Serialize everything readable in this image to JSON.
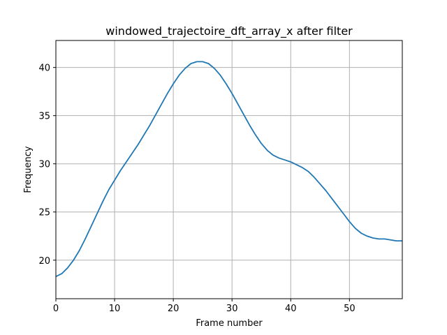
{
  "chart_data": {
    "type": "line",
    "title": "windowed_trajectoire_dft_array_x after filter",
    "xlabel": "Frame number",
    "ylabel": "Frequency",
    "xlim": [
      0,
      59
    ],
    "ylim": [
      16,
      42.8
    ],
    "xticks": [
      0,
      10,
      20,
      30,
      40,
      50
    ],
    "yticks": [
      20,
      25,
      30,
      35,
      40
    ],
    "grid": true,
    "line_color": "#1f77b4",
    "series": [
      {
        "x": [
          0,
          1,
          2,
          3,
          4,
          5,
          6,
          7,
          8,
          9,
          10,
          11,
          12,
          13,
          14,
          15,
          16,
          17,
          18,
          19,
          20,
          21,
          22,
          23,
          24,
          25,
          26,
          27,
          28,
          29,
          30,
          31,
          32,
          33,
          34,
          35,
          36,
          37,
          38,
          39,
          40,
          41,
          42,
          43,
          44,
          45,
          46,
          47,
          48,
          49,
          50,
          51,
          52,
          53,
          54,
          55,
          56,
          57,
          58,
          59
        ],
        "values": [
          18.3,
          18.6,
          19.2,
          20.0,
          21.0,
          22.2,
          23.5,
          24.8,
          26.1,
          27.3,
          28.3,
          29.3,
          30.2,
          31.1,
          32.0,
          33.0,
          34.0,
          35.1,
          36.2,
          37.3,
          38.3,
          39.2,
          39.9,
          40.4,
          40.6,
          40.6,
          40.4,
          39.9,
          39.2,
          38.3,
          37.3,
          36.2,
          35.1,
          34.0,
          33.0,
          32.1,
          31.4,
          30.9,
          30.6,
          30.4,
          30.2,
          29.9,
          29.6,
          29.2,
          28.6,
          27.9,
          27.2,
          26.4,
          25.6,
          24.8,
          24.0,
          23.3,
          22.8,
          22.5,
          22.3,
          22.2,
          22.2,
          22.1,
          22.0,
          22.0
        ]
      }
    ]
  }
}
